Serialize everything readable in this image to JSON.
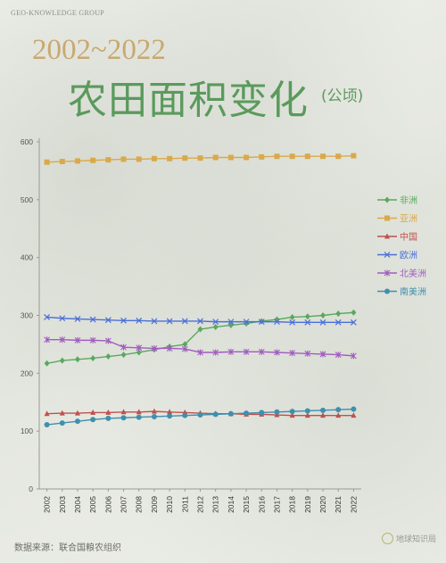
{
  "brand": "GEO-KNOWLEDGE GROUP",
  "title_years": "2002~2022",
  "title_main": "农田面积变化",
  "title_unit": "(公顷)",
  "source": "数据来源：联合国粮农组织",
  "watermark": "地球知识局",
  "colors": {
    "africa": "#5aa85e",
    "asia": "#d9a94a",
    "china": "#c0504d",
    "europe": "#4a6fd9",
    "north_america": "#a05cc0",
    "south_america": "#3f8fae"
  },
  "chart_data": {
    "type": "line",
    "x": [
      "2002",
      "2003",
      "2004",
      "2005",
      "2006",
      "2007",
      "2008",
      "2009",
      "2010",
      "2011",
      "2012",
      "2013",
      "2014",
      "2015",
      "2016",
      "2017",
      "2018",
      "2019",
      "2020",
      "2021",
      "2022"
    ],
    "ylim": [
      0,
      600
    ],
    "yticks": [
      0,
      100,
      200,
      300,
      400,
      500,
      600
    ],
    "grid": false,
    "legend_position": "right",
    "series": [
      {
        "name": "非洲",
        "key": "africa",
        "marker": "diamond",
        "values": [
          217,
          222,
          224,
          226,
          229,
          232,
          236,
          241,
          246,
          250,
          276,
          280,
          283,
          286,
          290,
          293,
          297,
          298,
          300,
          303,
          305
        ]
      },
      {
        "name": "亚洲",
        "key": "asia",
        "marker": "square",
        "values": [
          565,
          566,
          567,
          568,
          569,
          570,
          570,
          571,
          571,
          572,
          572,
          573,
          573,
          573,
          574,
          575,
          575,
          575,
          575,
          575,
          576
        ]
      },
      {
        "name": "中国",
        "key": "china",
        "marker": "triangle",
        "values": [
          130,
          131,
          131,
          132,
          132,
          133,
          133,
          134,
          133,
          132,
          131,
          130,
          130,
          129,
          129,
          128,
          127,
          127,
          127,
          127,
          127
        ]
      },
      {
        "name": "欧洲",
        "key": "europe",
        "marker": "x",
        "values": [
          297,
          295,
          294,
          293,
          292,
          291,
          291,
          290,
          290,
          290,
          290,
          289,
          289,
          289,
          289,
          289,
          288,
          288,
          288,
          288,
          288
        ]
      },
      {
        "name": "北美洲",
        "key": "north_america",
        "marker": "cross",
        "values": [
          258,
          258,
          257,
          257,
          256,
          245,
          244,
          243,
          243,
          242,
          236,
          236,
          237,
          237,
          237,
          236,
          235,
          234,
          233,
          232,
          230
        ]
      },
      {
        "name": "南美洲",
        "key": "south_america",
        "marker": "circle",
        "values": [
          111,
          114,
          117,
          120,
          122,
          123,
          124,
          125,
          126,
          127,
          128,
          129,
          130,
          131,
          132,
          133,
          134,
          135,
          136,
          137,
          138
        ]
      }
    ]
  }
}
